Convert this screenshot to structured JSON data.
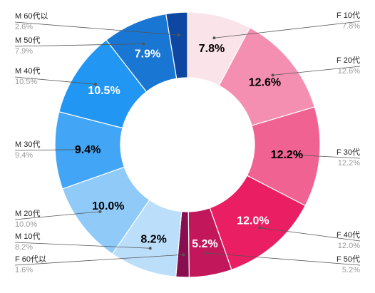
{
  "chart_data": {
    "type": "pie",
    "variant": "donut",
    "title": "",
    "legend": "none",
    "slices": [
      {
        "label": "F 10代",
        "value": 7.8,
        "display": "7.8%",
        "ext_value": "7.8%",
        "color": "#fbe3ea",
        "text_color": "#000000"
      },
      {
        "label": "F 20代",
        "value": 12.6,
        "display": "12.6%",
        "ext_value": "12.6%",
        "color": "#f48fb1",
        "text_color": "#000000"
      },
      {
        "label": "F 30代",
        "value": 12.2,
        "display": "12.2%",
        "ext_value": "12.2%",
        "color": "#f06292",
        "text_color": "#000000"
      },
      {
        "label": "F 40代",
        "value": 12.0,
        "display": "12.0%",
        "ext_value": "12.0%",
        "color": "#e91e63",
        "text_color": "#ffffff"
      },
      {
        "label": "F 50代",
        "value": 5.2,
        "display": "5.2%",
        "ext_value": "5.2%",
        "color": "#c2185b",
        "text_color": "#ffffff"
      },
      {
        "label": "F 60代以",
        "value": 1.6,
        "display": "",
        "ext_value": "1.6%",
        "color": "#880e4f",
        "text_color": "#ffffff"
      },
      {
        "label": "M 10代",
        "value": 8.2,
        "display": "8.2%",
        "ext_value": "8.2%",
        "color": "#bbdefb",
        "text_color": "#000000"
      },
      {
        "label": "M 20代",
        "value": 10.0,
        "display": "10.0%",
        "ext_value": "10.0%",
        "color": "#90caf9",
        "text_color": "#000000"
      },
      {
        "label": "M 30代",
        "value": 9.4,
        "display": "9.4%",
        "ext_value": "9.4%",
        "color": "#42a5f5",
        "text_color": "#000000"
      },
      {
        "label": "M 40代",
        "value": 10.5,
        "display": "10.5%",
        "ext_value": "10.5%",
        "color": "#2196f3",
        "text_color": "#ffffff"
      },
      {
        "label": "M 50代",
        "value": 7.9,
        "display": "7.9%",
        "ext_value": "7.9%",
        "color": "#1976d2",
        "text_color": "#ffffff"
      },
      {
        "label": "M 60代以",
        "value": 2.6,
        "display": "",
        "ext_value": "2.6%",
        "color": "#0d47a1",
        "text_color": "#ffffff"
      }
    ]
  }
}
